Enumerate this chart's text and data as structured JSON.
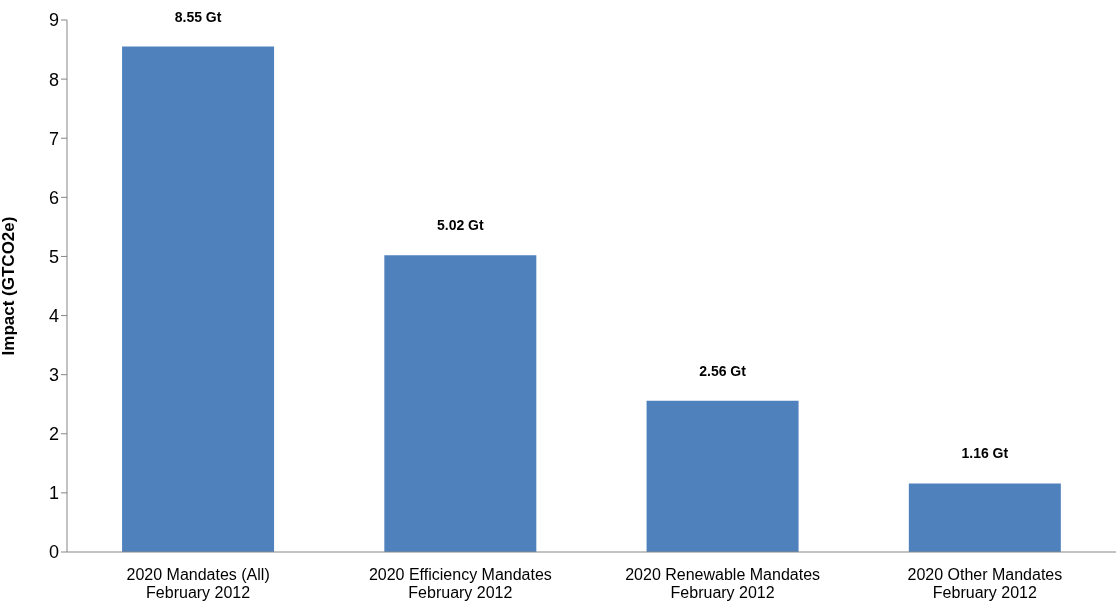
{
  "chart_data": {
    "type": "bar",
    "ylabel": "Impact (GTCO2e)",
    "categories": [
      "2020 Mandates (All)\nFebruary 2012",
      "2020 Efficiency Mandates\nFebruary 2012",
      "2020 Renewable Mandates\nFebruary 2012",
      "2020 Other Mandates\nFebruary 2012"
    ],
    "values": [
      8.55,
      5.02,
      2.56,
      1.16
    ],
    "value_labels": [
      "8.55 Gt",
      "5.02 Gt",
      "2.56 Gt",
      "1.16 Gt"
    ],
    "color": "#4f81bd",
    "ylim": [
      0,
      9
    ],
    "yticks": [
      0,
      1,
      2,
      3,
      4,
      5,
      6,
      7,
      8,
      9
    ],
    "grid": false
  }
}
